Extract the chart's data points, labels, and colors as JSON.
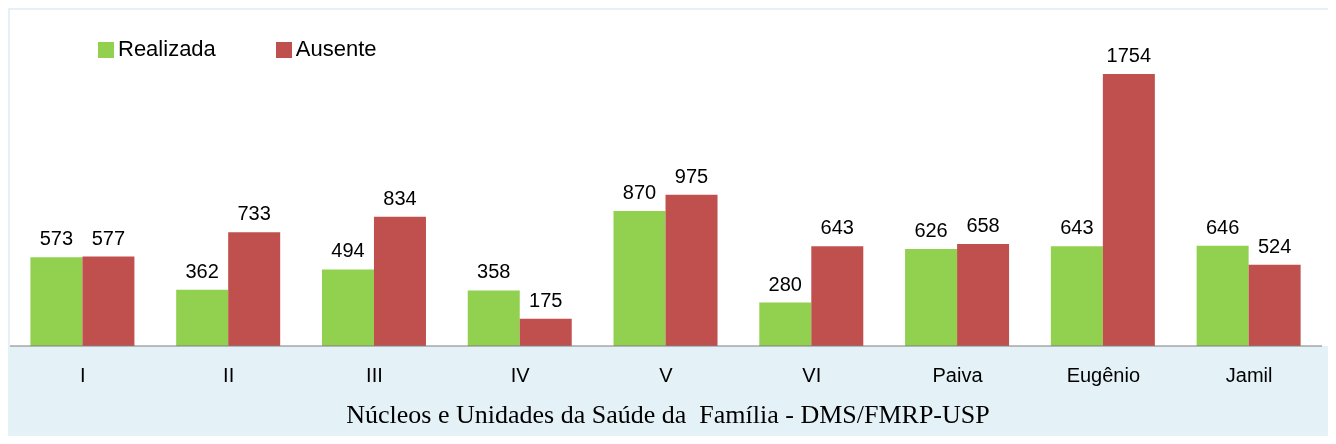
{
  "chart_data": {
    "type": "bar",
    "xlabel": "Núcleos e Unidades da Saúde da  Família - DMS/FMRP-USP",
    "categories": [
      "I",
      "II",
      "III",
      "IV",
      "V",
      "VI",
      "Paiva",
      "Eugênio",
      "Jamil"
    ],
    "series": [
      {
        "name": "Realizada",
        "color": "#92d050",
        "values": [
          573,
          362,
          494,
          358,
          870,
          280,
          626,
          643,
          646
        ]
      },
      {
        "name": "Ausente",
        "color": "#c0504d",
        "values": [
          577,
          733,
          834,
          175,
          975,
          643,
          658,
          1754,
          524
        ]
      }
    ],
    "data_labels": true,
    "legend": "top left",
    "grid": false
  }
}
